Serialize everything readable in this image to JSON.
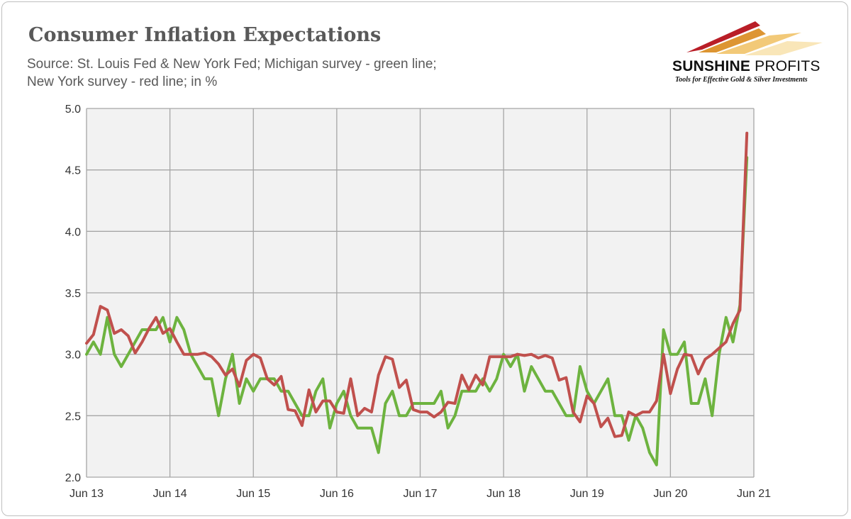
{
  "header": {
    "title": "Consumer Inflation Expectations",
    "subtitle_line1": "Source: St. Louis Fed & New York Fed; Michigan survey - green line;",
    "subtitle_line2": "New York survey - red line; in %"
  },
  "logo": {
    "name_bold": "SUNSHINE",
    "name_light": "PROFITS",
    "tagline": "Tools for Effective Gold & Silver Investments"
  },
  "colors": {
    "michigan": "#6DB33F",
    "new_york": "#C0504D",
    "plot_background": "#f2f2f2",
    "gridline": "#a6a6a6"
  },
  "chart_data": {
    "type": "line",
    "title": "Consumer Inflation Expectations",
    "xlabel": "",
    "ylabel": "",
    "x_start": "Jun 13",
    "x_step": "1 month",
    "ylim": [
      2.0,
      5.0
    ],
    "yticks": [
      "2.0",
      "2.5",
      "3.0",
      "3.5",
      "4.0",
      "4.5",
      "5.0"
    ],
    "xticks": [
      "Jun 13",
      "Jun 14",
      "Jun 15",
      "Jun 16",
      "Jun 17",
      "Jun 18",
      "Jun 19",
      "Jun 20",
      "Jun 21"
    ],
    "grid": true,
    "legend": "none",
    "series": [
      {
        "name": "Michigan survey",
        "color": "green",
        "values": [
          3.0,
          3.1,
          3.0,
          3.3,
          3.0,
          2.9,
          3.0,
          3.1,
          3.2,
          3.2,
          3.2,
          3.3,
          3.1,
          3.3,
          3.2,
          3.0,
          2.9,
          2.8,
          2.8,
          2.5,
          2.8,
          3.0,
          2.6,
          2.8,
          2.7,
          2.8,
          2.8,
          2.8,
          2.7,
          2.7,
          2.6,
          2.5,
          2.5,
          2.7,
          2.8,
          2.4,
          2.6,
          2.7,
          2.5,
          2.4,
          2.4,
          2.4,
          2.2,
          2.6,
          2.7,
          2.5,
          2.5,
          2.6,
          2.6,
          2.6,
          2.6,
          2.7,
          2.4,
          2.5,
          2.7,
          2.7,
          2.7,
          2.8,
          2.7,
          2.8,
          3.0,
          2.9,
          3.0,
          2.7,
          2.9,
          2.8,
          2.7,
          2.7,
          2.6,
          2.5,
          2.5,
          2.9,
          2.7,
          2.6,
          2.7,
          2.8,
          2.5,
          2.5,
          2.3,
          2.5,
          2.4,
          2.2,
          2.1,
          3.2,
          3.0,
          3.0,
          3.1,
          2.6,
          2.6,
          2.8,
          2.5,
          3.0,
          3.3,
          3.1,
          3.4,
          4.6
        ]
      },
      {
        "name": "New York survey",
        "color": "red",
        "values": [
          3.09,
          3.16,
          3.39,
          3.36,
          3.17,
          3.2,
          3.15,
          3.01,
          3.1,
          3.21,
          3.3,
          3.17,
          3.21,
          3.1,
          3.0,
          3.0,
          3.0,
          3.01,
          2.98,
          2.92,
          2.83,
          2.88,
          2.74,
          2.95,
          3.0,
          2.97,
          2.8,
          2.75,
          2.82,
          2.55,
          2.54,
          2.42,
          2.71,
          2.53,
          2.62,
          2.62,
          2.53,
          2.52,
          2.8,
          2.5,
          2.56,
          2.53,
          2.83,
          2.98,
          2.96,
          2.73,
          2.79,
          2.55,
          2.53,
          2.53,
          2.49,
          2.53,
          2.61,
          2.6,
          2.83,
          2.71,
          2.83,
          2.75,
          2.98,
          2.98,
          2.98,
          2.98,
          3.0,
          2.99,
          3.0,
          2.97,
          2.99,
          2.97,
          2.79,
          2.81,
          2.53,
          2.45,
          2.66,
          2.6,
          2.41,
          2.48,
          2.33,
          2.34,
          2.53,
          2.5,
          2.53,
          2.53,
          2.62,
          3.0,
          2.68,
          2.88,
          3.0,
          2.99,
          2.84,
          2.96,
          3.0,
          3.05,
          3.1,
          3.25,
          3.36,
          4.8
        ]
      }
    ]
  }
}
